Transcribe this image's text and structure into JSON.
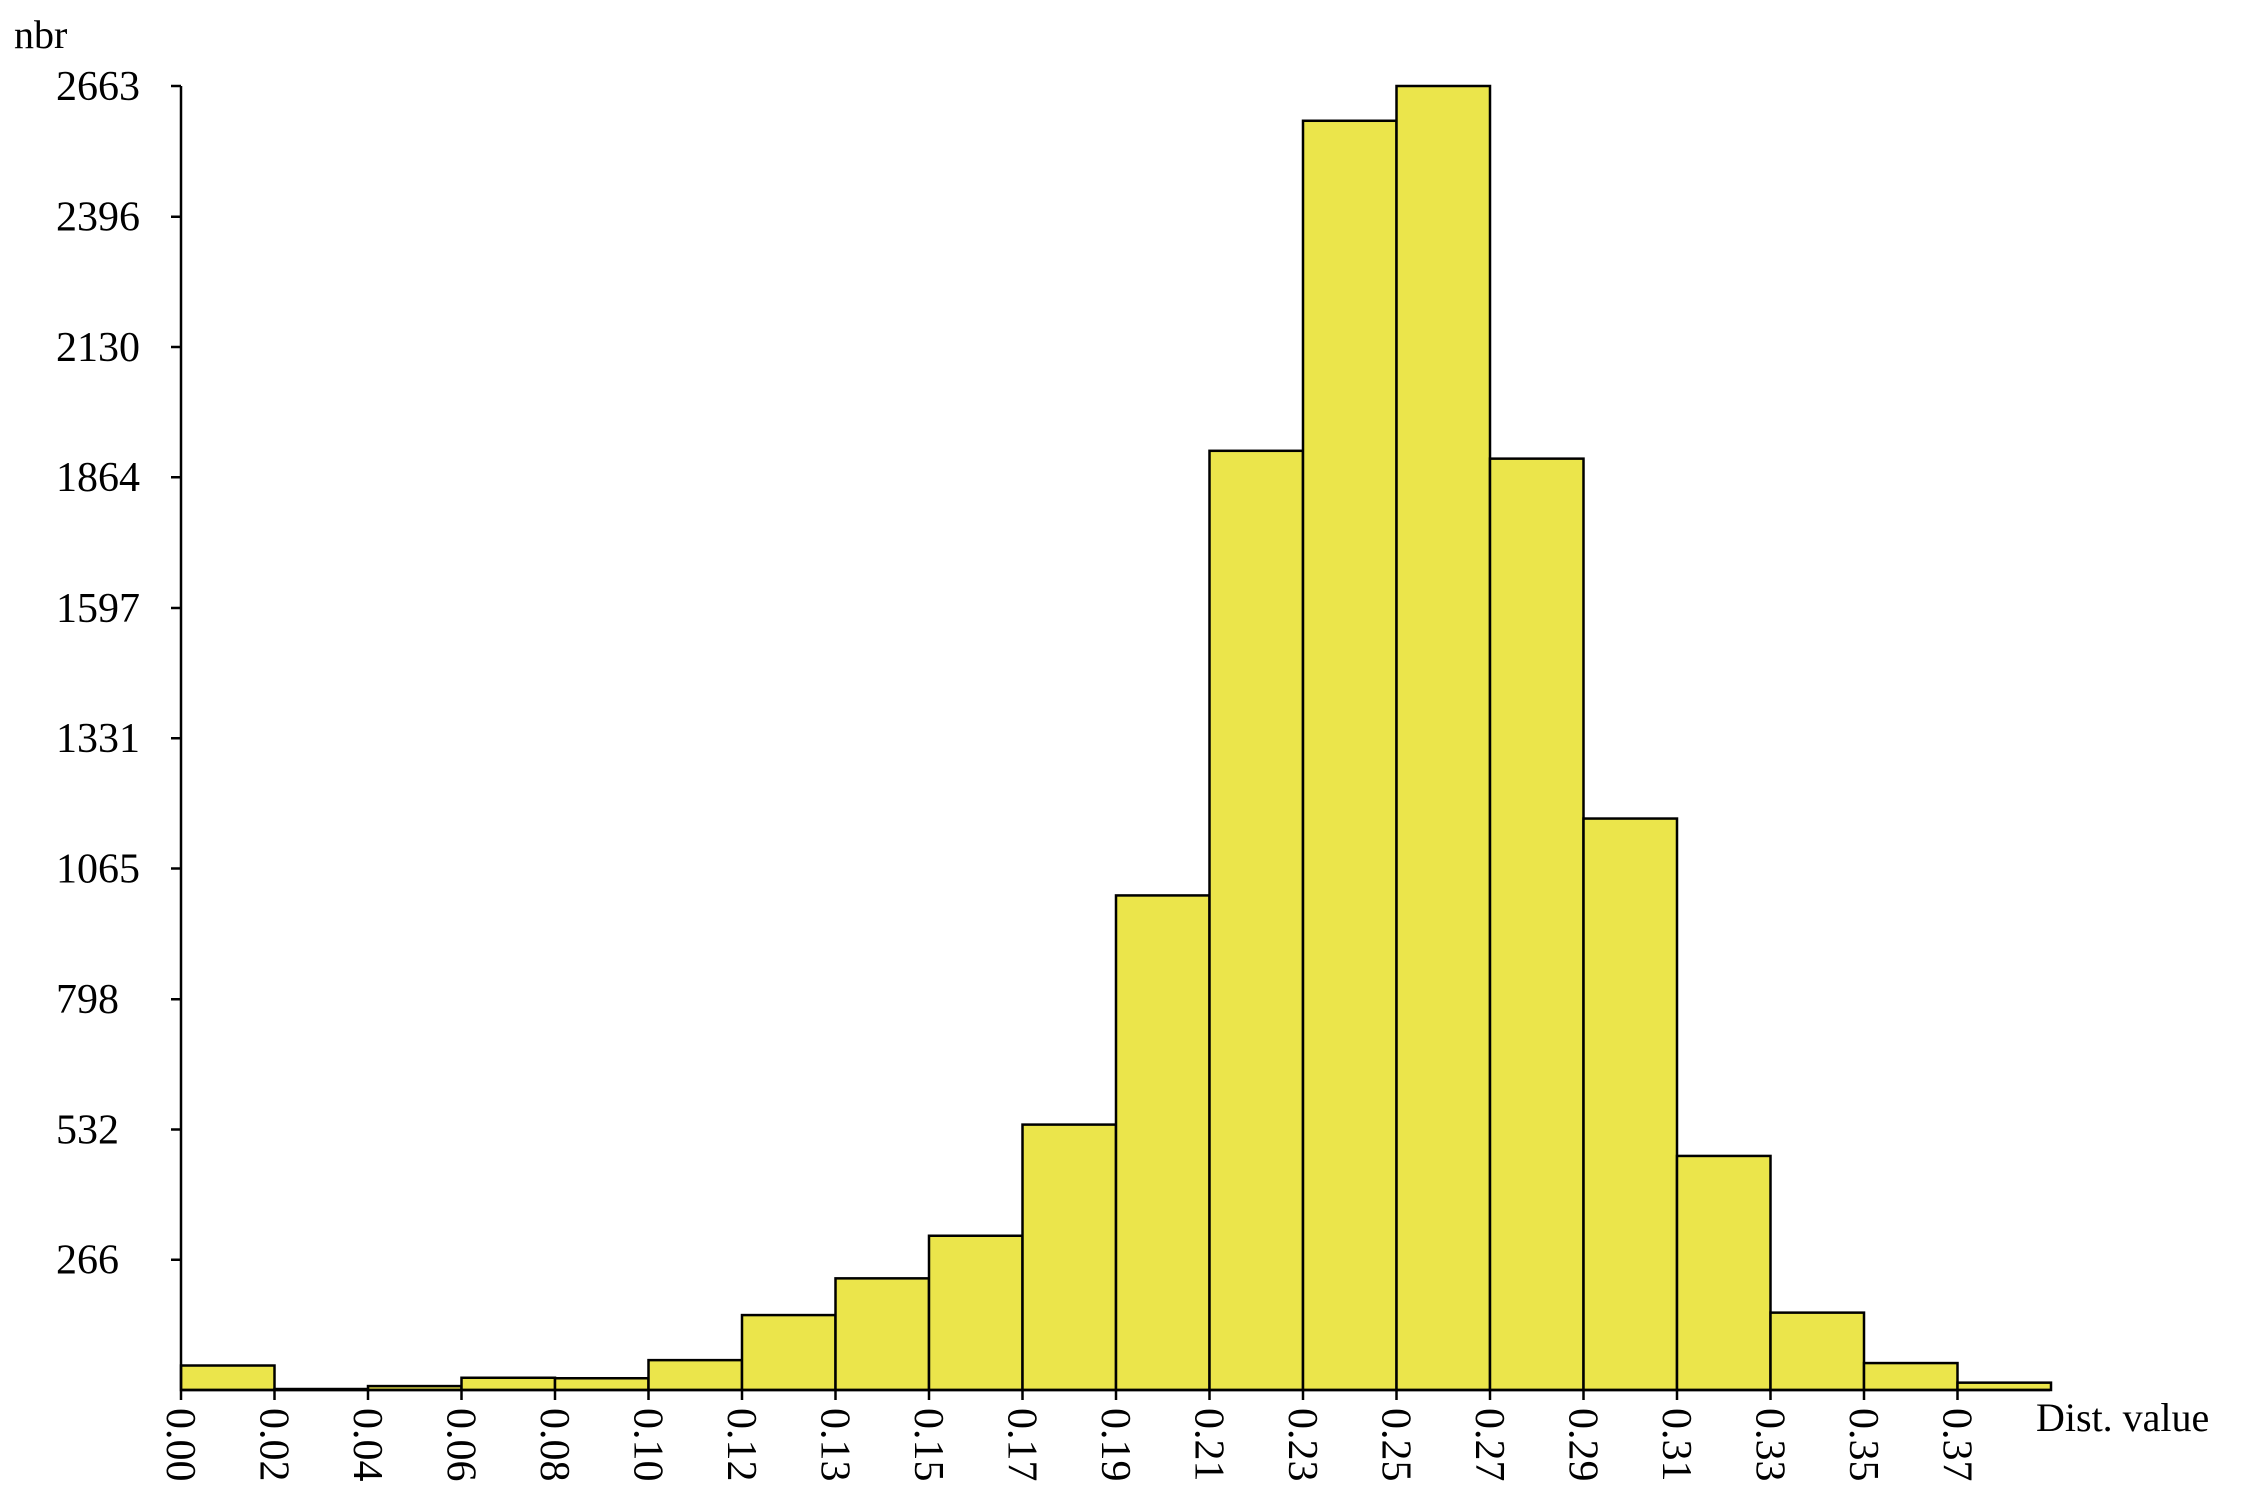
{
  "chart_data": {
    "type": "bar",
    "title": "",
    "ylabel": "nbr",
    "xlabel": "Dist. value",
    "bar_color": "#ebe54b",
    "y_ticks": [
      "266",
      "532",
      "798",
      "1065",
      "1331",
      "1597",
      "1864",
      "2130",
      "2396",
      "2663"
    ],
    "ylim": [
      0,
      2663
    ],
    "x_ticks": [
      "0.00",
      "0.02",
      "0.04",
      "0.06",
      "0.08",
      "0.10",
      "0.12",
      "0.13",
      "0.15",
      "0.17",
      "0.19",
      "0.21",
      "0.23",
      "0.25",
      "0.27",
      "0.29",
      "0.31",
      "0.33",
      "0.35",
      "0.37"
    ],
    "bins": [
      {
        "start": "0.00",
        "value": 50
      },
      {
        "start": "0.02",
        "value": 2
      },
      {
        "start": "0.04",
        "value": 8
      },
      {
        "start": "0.06",
        "value": 25
      },
      {
        "start": "0.08",
        "value": 24
      },
      {
        "start": "0.10",
        "value": 61
      },
      {
        "start": "0.12",
        "value": 153
      },
      {
        "start": "0.13",
        "value": 228
      },
      {
        "start": "0.15",
        "value": 315
      },
      {
        "start": "0.17",
        "value": 542
      },
      {
        "start": "0.19",
        "value": 1010
      },
      {
        "start": "0.21",
        "value": 1918
      },
      {
        "start": "0.23",
        "value": 2592
      },
      {
        "start": "0.25",
        "value": 2663
      },
      {
        "start": "0.27",
        "value": 1902
      },
      {
        "start": "0.29",
        "value": 1167
      },
      {
        "start": "0.31",
        "value": 478
      },
      {
        "start": "0.33",
        "value": 158
      },
      {
        "start": "0.35",
        "value": 55
      },
      {
        "start": "0.37",
        "value": 15
      }
    ]
  }
}
